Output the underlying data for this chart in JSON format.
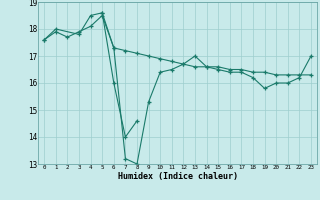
{
  "background_color": "#c8eaea",
  "grid_color": "#9ecece",
  "line_color": "#1a7a6a",
  "marker": "+",
  "xlabel": "Humidex (Indice chaleur)",
  "xlim": [
    -0.5,
    23.5
  ],
  "ylim": [
    13,
    19
  ],
  "yticks": [
    13,
    14,
    15,
    16,
    17,
    18,
    19
  ],
  "xticks": [
    0,
    1,
    2,
    3,
    4,
    5,
    6,
    7,
    8,
    9,
    10,
    11,
    12,
    13,
    14,
    15,
    16,
    17,
    18,
    19,
    20,
    21,
    22,
    23
  ],
  "line1_x": [
    0,
    1,
    2,
    3,
    4,
    5,
    6,
    7,
    8,
    9,
    10,
    11,
    12,
    13,
    14,
    15,
    16,
    17,
    18,
    19,
    20,
    21,
    22,
    23
  ],
  "line1_y": [
    17.6,
    17.9,
    17.7,
    17.9,
    18.1,
    18.5,
    17.3,
    17.2,
    17.1,
    17.0,
    16.9,
    16.8,
    16.7,
    16.6,
    16.6,
    16.6,
    16.5,
    16.5,
    16.4,
    16.4,
    16.3,
    16.3,
    16.3,
    16.3
  ],
  "line2_x": [
    0,
    1,
    3,
    4,
    5,
    6,
    7,
    8,
    9,
    10,
    11,
    12,
    13,
    14,
    15,
    16,
    17,
    18,
    19,
    20,
    21,
    22,
    23
  ],
  "line2_y": [
    17.6,
    18.0,
    17.8,
    18.5,
    18.6,
    17.3,
    13.2,
    13.0,
    15.3,
    16.4,
    16.5,
    16.7,
    17.0,
    16.6,
    16.5,
    16.4,
    16.4,
    16.2,
    15.8,
    16.0,
    16.0,
    16.2,
    17.0
  ],
  "line3_x": [
    5,
    6,
    7,
    8
  ],
  "line3_y": [
    18.6,
    16.0,
    14.0,
    14.6
  ]
}
